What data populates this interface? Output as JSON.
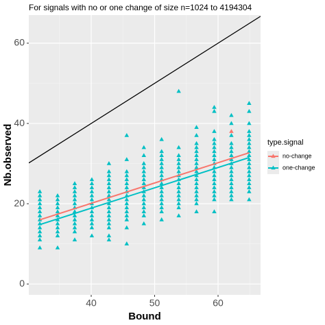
{
  "chart_data": {
    "type": "scatter",
    "title": "For signals with no or one change of size n=1024 to 4194304",
    "x_label": "Bound",
    "y_label": "Nb.observed",
    "legend_title": "type.signal",
    "legend_position": "right",
    "xlim": [
      30.16,
      66.7
    ],
    "ylim": [
      -2.7,
      67
    ],
    "xticks": [
      40,
      50,
      60
    ],
    "yticks": [
      0,
      20,
      40,
      60
    ],
    "xminor": [
      35,
      45,
      55,
      65
    ],
    "yminor": [
      10,
      30,
      50
    ],
    "grid": true,
    "reference_line": {
      "color": "#000000",
      "x": [
        30.16,
        66.7
      ],
      "values": [
        30.16,
        66.7
      ]
    },
    "series": [
      {
        "name": "no-change",
        "color": "#F8766D",
        "x": [
          62.1
        ],
        "values": [
          [
            38
          ]
        ],
        "fit_x": [
          31.9,
          64.9
        ],
        "fit_values": [
          16.0,
          32.7
        ]
      },
      {
        "name": "one-change",
        "color": "#00BFC4",
        "x": [
          31.9,
          34.7,
          37.4,
          40.1,
          42.8,
          45.6,
          48.3,
          51.1,
          53.8,
          56.6,
          59.4,
          62.1,
          64.9
        ],
        "values": [
          [
            9,
            11,
            12,
            13,
            14,
            15,
            16,
            17,
            18,
            19,
            20,
            21,
            22,
            23
          ],
          [
            9,
            12,
            13,
            14,
            15,
            16,
            17,
            18,
            19,
            20,
            21,
            22
          ],
          [
            11,
            13,
            14,
            15,
            16,
            17,
            18,
            19,
            20,
            21,
            22,
            23,
            24,
            25
          ],
          [
            12,
            14,
            15,
            16,
            17,
            18,
            19,
            20,
            21,
            22,
            23,
            24,
            25,
            26
          ],
          [
            11,
            12,
            14,
            15,
            16,
            17,
            18,
            19,
            20,
            21,
            22,
            23,
            24,
            25,
            26,
            27,
            28,
            30
          ],
          [
            10,
            14,
            16,
            17,
            18,
            19,
            20,
            21,
            22,
            23,
            24,
            25,
            26,
            27,
            28,
            31,
            37
          ],
          [
            15,
            17,
            18,
            19,
            20,
            21,
            22,
            23,
            24,
            25,
            26,
            27,
            28,
            29,
            30,
            32,
            34
          ],
          [
            16,
            18,
            19,
            20,
            21,
            22,
            23,
            24,
            25,
            26,
            27,
            28,
            29,
            30,
            31,
            32,
            33,
            36
          ],
          [
            17,
            19,
            20,
            21,
            22,
            23,
            24,
            25,
            26,
            27,
            28,
            29,
            30,
            31,
            32,
            34,
            48
          ],
          [
            18,
            20,
            21,
            22,
            23,
            24,
            25,
            26,
            27,
            28,
            29,
            30,
            31,
            32,
            33,
            34,
            35,
            37,
            39
          ],
          [
            18,
            21,
            22,
            23,
            24,
            25,
            26,
            27,
            28,
            29,
            30,
            31,
            32,
            33,
            34,
            35,
            36,
            38,
            43,
            44
          ],
          [
            21,
            22,
            23,
            24,
            25,
            26,
            27,
            28,
            29,
            30,
            31,
            32,
            33,
            34,
            35,
            37,
            40,
            42
          ],
          [
            21,
            23,
            24,
            25,
            26,
            27,
            28,
            29,
            30,
            31,
            32,
            33,
            34,
            35,
            36,
            37,
            38,
            40,
            43,
            45
          ]
        ],
        "fit_x": [
          31.9,
          64.9
        ],
        "fit_values": [
          14.8,
          31.5
        ]
      }
    ]
  }
}
